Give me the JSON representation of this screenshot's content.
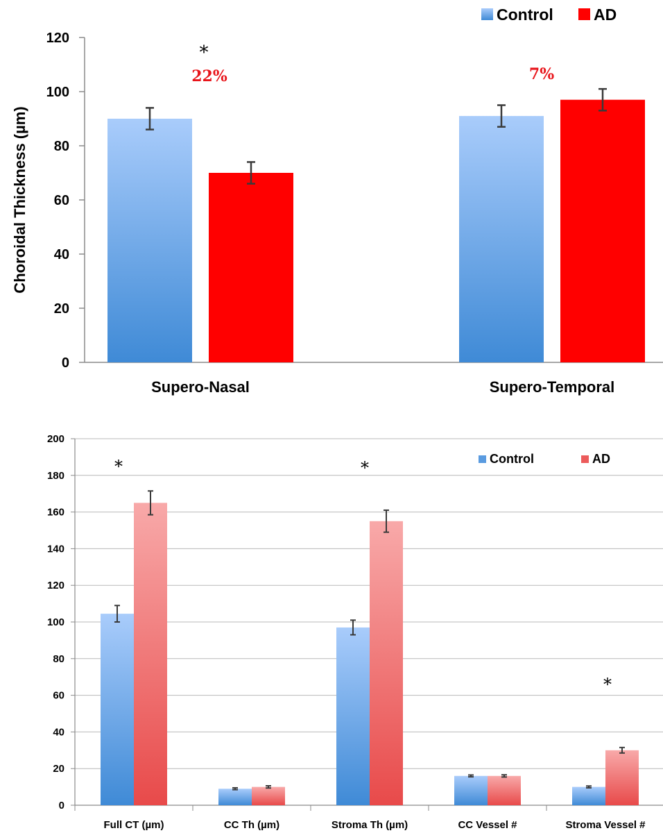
{
  "chart_data": [
    {
      "type": "bar",
      "ylabel": "Choroidal Thickness (µm)",
      "ylim": [
        0,
        120
      ],
      "yticks": [
        0,
        20,
        40,
        60,
        80,
        100,
        120
      ],
      "categories": [
        "Supero-Nasal",
        "Supero-Temporal"
      ],
      "series": [
        {
          "name": "Control",
          "values": [
            90,
            91
          ],
          "errors": [
            4,
            4
          ],
          "color": "#4a90d9"
        },
        {
          "name": "AD",
          "values": [
            70,
            97
          ],
          "errors": [
            4,
            4
          ],
          "color": "#ff0000"
        }
      ],
      "legend": [
        "Control",
        "AD"
      ],
      "legend_position": "top-right",
      "grid": false,
      "annotations": [
        {
          "category": "Supero-Nasal",
          "significance": "*",
          "percent": "22%"
        },
        {
          "category": "Supero-Temporal",
          "significance": "",
          "percent": "7%"
        }
      ],
      "percent_color": "#e8141a"
    },
    {
      "type": "bar",
      "ylim": [
        0,
        200
      ],
      "yticks": [
        0,
        20,
        40,
        60,
        80,
        100,
        120,
        140,
        160,
        180,
        200
      ],
      "categories": [
        "Full CT (µm)",
        "CC Th (µm)",
        "Stroma Th (µm)",
        "CC Vessel #",
        "Stroma Vessel #"
      ],
      "series": [
        {
          "name": "Control",
          "values": [
            104.5,
            9,
            97,
            16,
            10
          ],
          "errors": [
            4.5,
            0.5,
            4,
            0.5,
            0.5
          ],
          "color": "#5a9be0"
        },
        {
          "name": "AD",
          "values": [
            165,
            10,
            155,
            16,
            30
          ],
          "errors": [
            6.5,
            0.6,
            6,
            0.6,
            1.5
          ],
          "color": "#ec5b5b"
        }
      ],
      "legend": [
        "Control",
        "AD"
      ],
      "legend_position": "top-right",
      "grid": true,
      "annotations": [
        {
          "category": "Full CT (µm)",
          "significance": "*"
        },
        {
          "category": "Stroma Th (µm)",
          "significance": "*"
        },
        {
          "category": "Stroma Vessel #",
          "significance": "*"
        }
      ]
    }
  ]
}
